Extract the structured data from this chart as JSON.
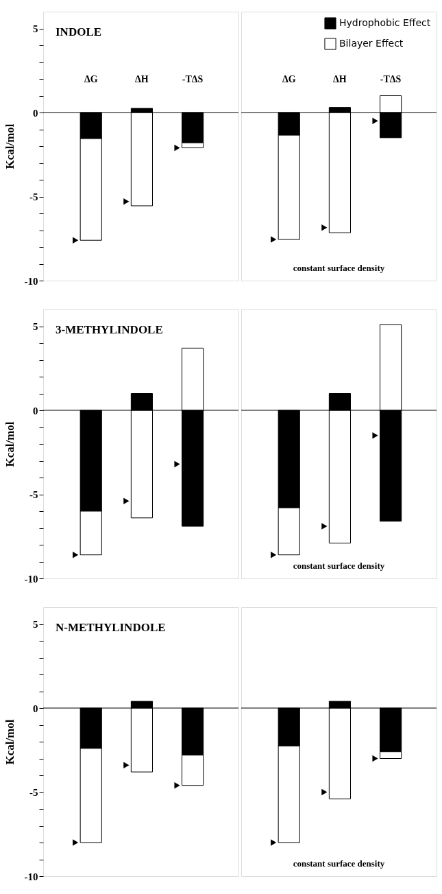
{
  "chart_data": [
    {
      "type": "bar",
      "title": "INDOLE",
      "ylabel": "Kcal/mol",
      "categories": [
        "ΔG",
        "ΔH",
        "-TΔS"
      ],
      "stacked": true,
      "marker": "triangle",
      "ylim": [
        -10,
        6
      ],
      "yticks": [
        -10,
        {
          "value": -9,
          "label": null
        },
        {
          "value": -8,
          "label": null
        },
        {
          "value": -7,
          "label": null
        },
        {
          "value": -6,
          "label": null
        },
        -5,
        {
          "value": -4,
          "label": null
        },
        {
          "value": -3,
          "label": null
        },
        {
          "value": -2,
          "label": null
        },
        {
          "value": -1,
          "label": null
        },
        0,
        {
          "value": 1,
          "label": null
        },
        {
          "value": 2,
          "label": null
        },
        {
          "value": 3,
          "label": null
        },
        {
          "value": 4,
          "label": null
        },
        5
      ],
      "ref_lines": [
        {
          "axis": "y",
          "value": 0
        }
      ],
      "series": [
        {
          "color": "#000000",
          "values": [
            -1.55,
            0.25,
            -1.8
          ]
        },
        {
          "color": "#ffffff",
          "values": [
            -6.05,
            -5.55,
            -0.3
          ]
        },
        {
          "type": "scatter",
          "color": "#000000",
          "values": [
            -7.6,
            -5.3,
            -2.1
          ]
        }
      ]
    },
    {
      "type": "bar",
      "categories": [
        "ΔG",
        "ΔH",
        "-TΔS"
      ],
      "stacked": true,
      "marker": "triangle",
      "ylim": [
        -10,
        6
      ],
      "tick_labels": "x",
      "legend": "top right",
      "annotations": [
        "constant surface density"
      ],
      "ref_lines": [
        {
          "axis": "y",
          "value": 0
        }
      ],
      "series": [
        {
          "name": "Hydrophobic Effect",
          "color": "#000000",
          "values": [
            -1.35,
            0.3,
            -1.5
          ]
        },
        {
          "name": "Bilayer Effect",
          "color": "#ffffff",
          "values": [
            -6.2,
            -7.15,
            1.0
          ]
        },
        {
          "type": "scatter",
          "color": "#000000",
          "values": [
            -7.55,
            -6.85,
            -0.5
          ]
        }
      ]
    },
    {
      "type": "bar",
      "title": "3-METHYLINDOLE",
      "ylabel": "Kcal/mol",
      "categories": [
        null,
        null,
        null
      ],
      "stacked": true,
      "marker": "triangle",
      "ylim": [
        -10,
        6
      ],
      "tick_labels": "y",
      "yticks": [
        -10,
        {
          "value": -9,
          "label": null
        },
        {
          "value": -8,
          "label": null
        },
        {
          "value": -7,
          "label": null
        },
        {
          "value": -6,
          "label": null
        },
        -5,
        {
          "value": -4,
          "label": null
        },
        {
          "value": -3,
          "label": null
        },
        {
          "value": -2,
          "label": null
        },
        {
          "value": -1,
          "label": null
        },
        0,
        {
          "value": 1,
          "label": null
        },
        {
          "value": 2,
          "label": null
        },
        {
          "value": 3,
          "label": null
        },
        {
          "value": 4,
          "label": null
        },
        5
      ],
      "ref_lines": [
        {
          "axis": "y",
          "value": 0
        }
      ],
      "series": [
        {
          "color": "#000000",
          "values": [
            -6.0,
            1.0,
            -6.9
          ]
        },
        {
          "color": "#ffffff",
          "values": [
            -2.6,
            -6.4,
            3.7
          ]
        },
        {
          "type": "scatter",
          "color": "#000000",
          "values": [
            -8.6,
            -5.4,
            -3.2
          ]
        }
      ]
    },
    {
      "type": "bar",
      "categories": [
        null,
        null,
        null
      ],
      "stacked": true,
      "marker": "triangle",
      "ylim": [
        -10,
        6
      ],
      "tick_labels": false,
      "annotations": [
        "constant surface density"
      ],
      "ref_lines": [
        {
          "axis": "y",
          "value": 0
        }
      ],
      "series": [
        {
          "color": "#000000",
          "values": [
            -5.8,
            1.0,
            -6.6
          ]
        },
        {
          "color": "#ffffff",
          "values": [
            -2.8,
            -7.9,
            5.1
          ]
        },
        {
          "type": "scatter",
          "color": "#000000",
          "values": [
            -8.6,
            -6.9,
            -1.5
          ]
        }
      ]
    },
    {
      "type": "bar",
      "title": "N-METHYLINDOLE",
      "ylabel": "Kcal/mol",
      "categories": [
        null,
        null,
        null
      ],
      "stacked": true,
      "marker": "triangle",
      "ylim": [
        -10,
        6
      ],
      "tick_labels": "y",
      "yticks": [
        -10,
        {
          "value": -9,
          "label": null
        },
        {
          "value": -8,
          "label": null
        },
        {
          "value": -7,
          "label": null
        },
        {
          "value": -6,
          "label": null
        },
        -5,
        {
          "value": -4,
          "label": null
        },
        {
          "value": -3,
          "label": null
        },
        {
          "value": -2,
          "label": null
        },
        {
          "value": -1,
          "label": null
        },
        0,
        {
          "value": 1,
          "label": null
        },
        {
          "value": 2,
          "label": null
        },
        {
          "value": 3,
          "label": null
        },
        {
          "value": 4,
          "label": null
        },
        5
      ],
      "ref_lines": [
        {
          "axis": "y",
          "value": 0
        }
      ],
      "series": [
        {
          "color": "#000000",
          "values": [
            -2.4,
            0.4,
            -2.8
          ]
        },
        {
          "color": "#ffffff",
          "values": [
            -5.6,
            -3.8,
            -1.8
          ]
        },
        {
          "type": "scatter",
          "color": "#000000",
          "values": [
            -8.0,
            -3.4,
            -4.6
          ]
        }
      ]
    },
    {
      "type": "bar",
      "categories": [
        null,
        null,
        null
      ],
      "stacked": true,
      "marker": "triangle",
      "ylim": [
        -10,
        6
      ],
      "tick_labels": false,
      "annotations": [
        "constant surface density"
      ],
      "ref_lines": [
        {
          "axis": "y",
          "value": 0
        }
      ],
      "series": [
        {
          "color": "#000000",
          "values": [
            -2.25,
            0.4,
            -2.6
          ]
        },
        {
          "color": "#ffffff",
          "values": [
            -5.75,
            -5.4,
            -0.4
          ]
        },
        {
          "type": "scatter",
          "color": "#000000",
          "values": [
            -8.0,
            -5.0,
            -3.0
          ]
        }
      ]
    }
  ]
}
